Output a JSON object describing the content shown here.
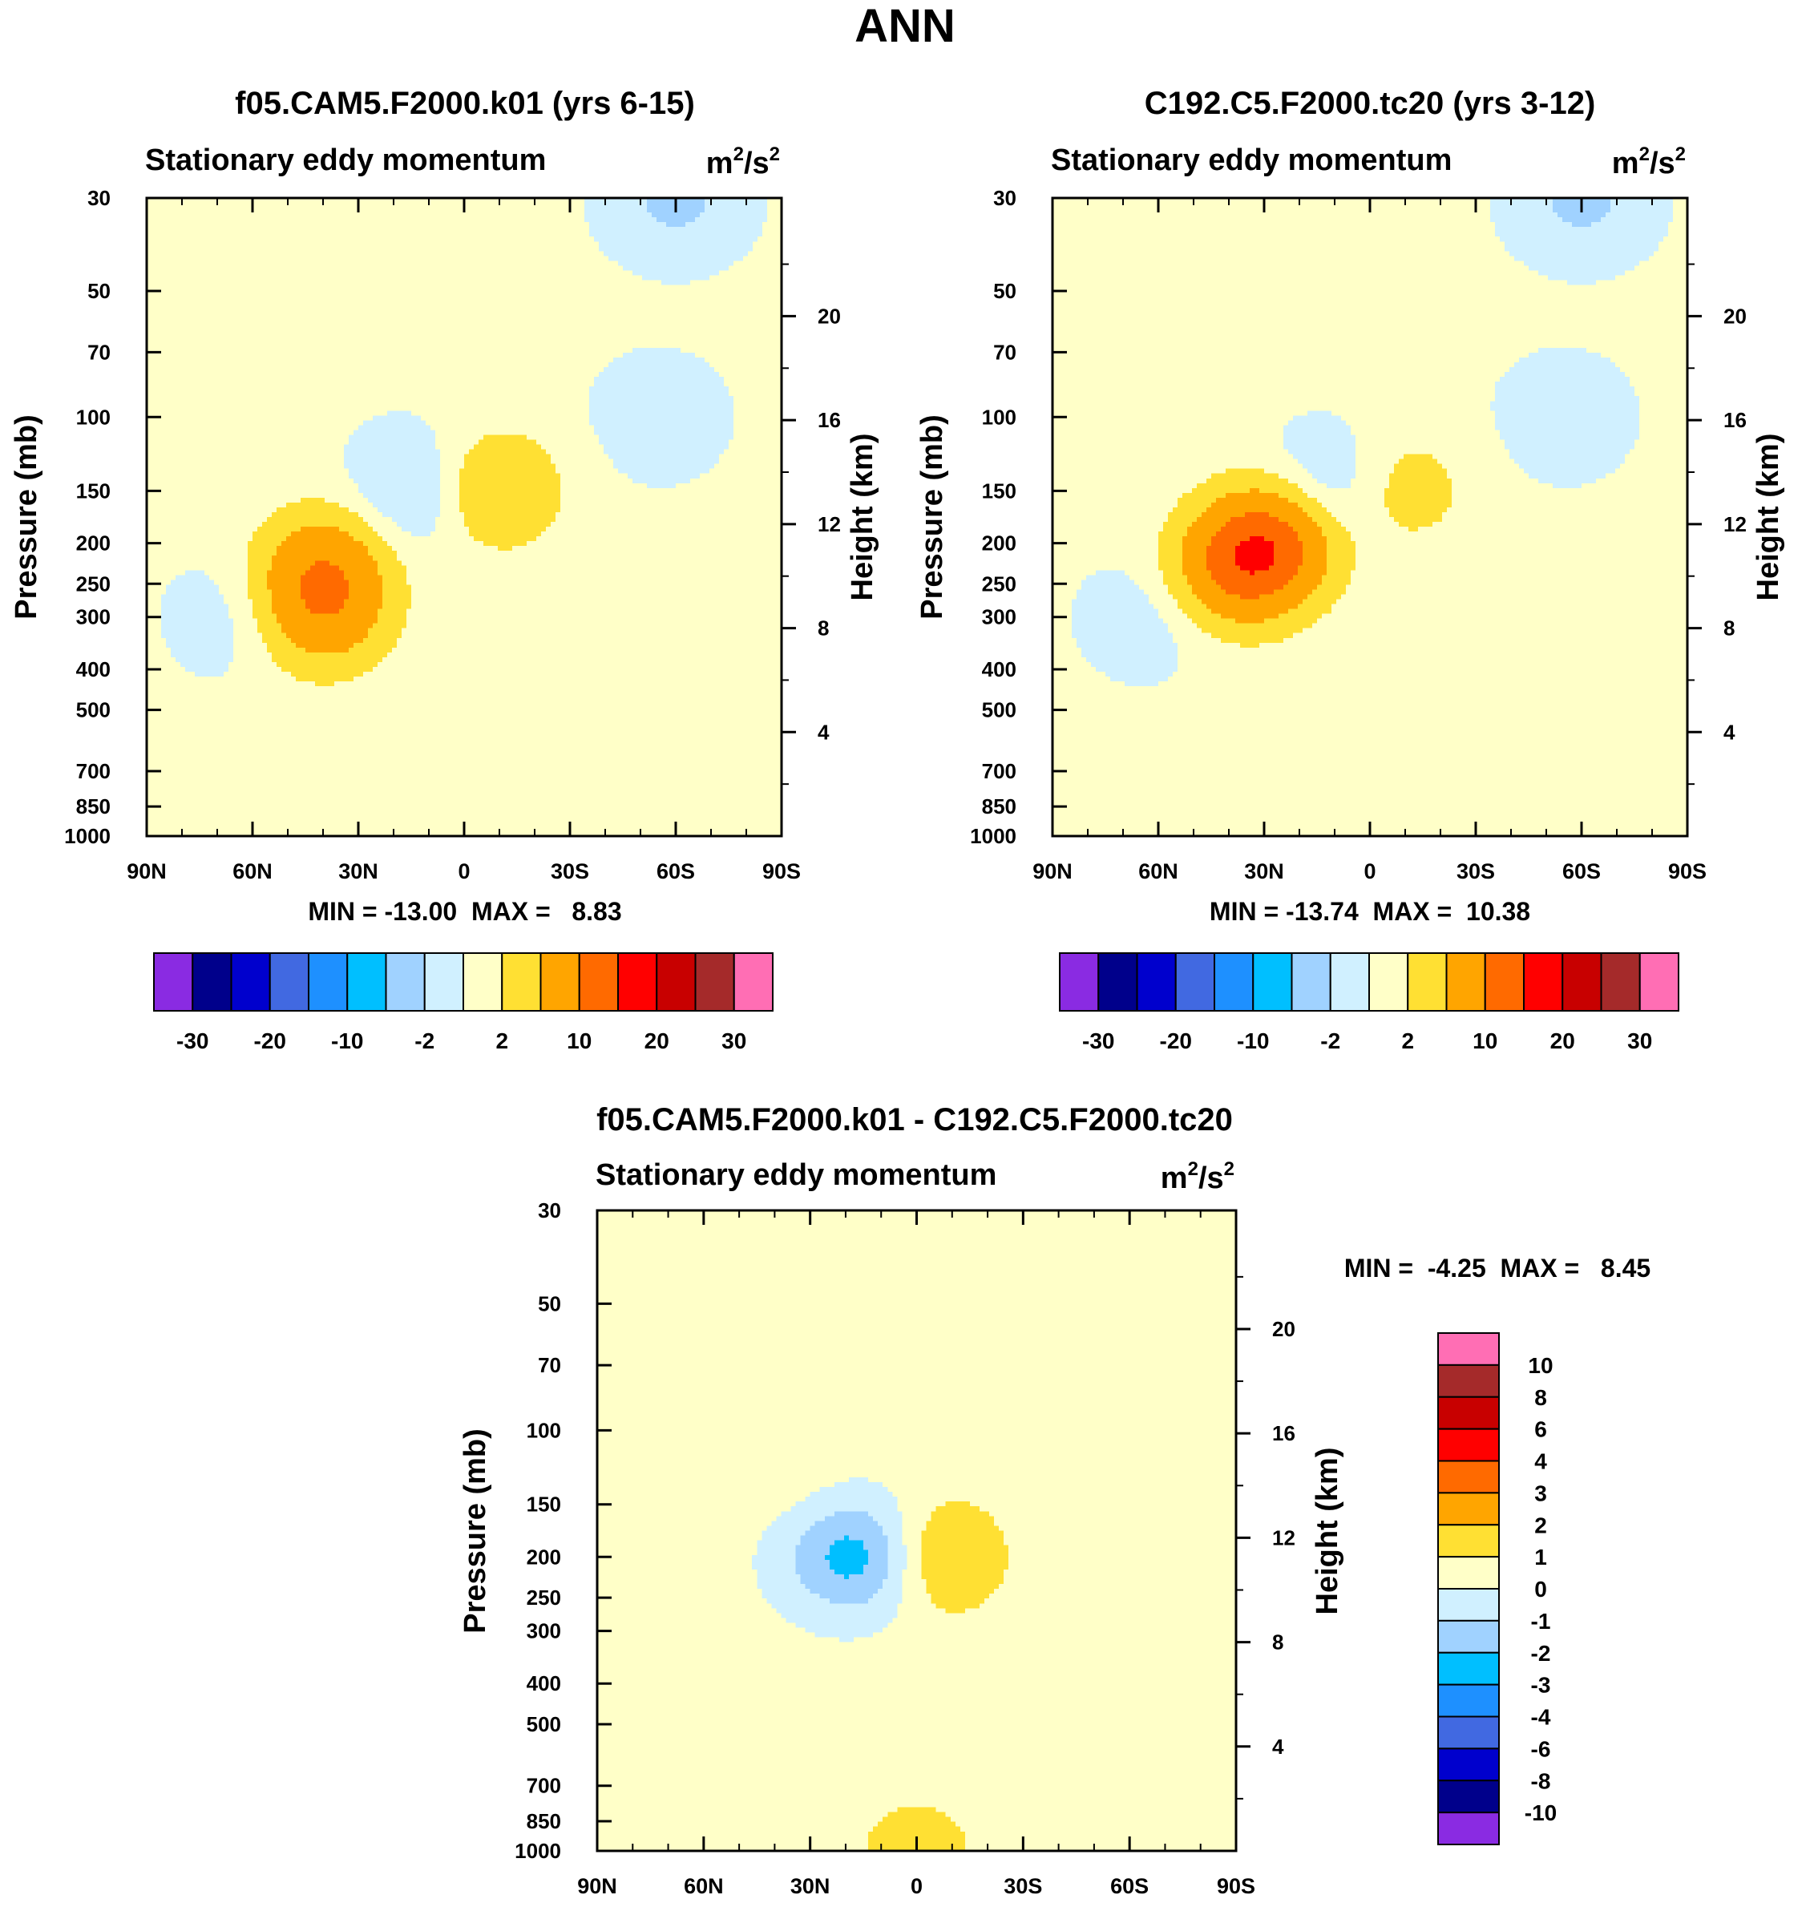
{
  "page_title": "ANN",
  "chart_data": [
    {
      "type": "heatmap",
      "panel_id": "panel-a",
      "title": "f05.CAM5.F2000.k01 (yrs 6-15)",
      "subtitle": "Stationary eddy momentum",
      "units_prefix": "m",
      "units_mid": "/s",
      "units_exp": "2",
      "ylabel": "Pressure (mb)",
      "y2label": "Height (km)",
      "x_ticks": [
        "90N",
        "60N",
        "30N",
        "0",
        "30S",
        "60S",
        "90S"
      ],
      "y_ticks": [
        "30",
        "50",
        "70",
        "100",
        "150",
        "200",
        "250",
        "300",
        "400",
        "500",
        "700",
        "850",
        "1000"
      ],
      "y2_ticks": [
        "20",
        "16",
        "12",
        "8",
        "4"
      ],
      "min_max_text": "MIN = -13.00  MAX =   8.83",
      "colorbar": {
        "orientation": "horizontal",
        "labels": [
          "-30",
          "-20",
          "-10",
          "-2",
          "2",
          "10",
          "20",
          "30"
        ]
      },
      "contour_levels": [
        -30,
        -25,
        -20,
        -15,
        -10,
        -5,
        -2,
        0,
        2,
        5,
        10,
        15,
        20,
        25,
        30
      ],
      "features": [
        {
          "lat": 40,
          "p": 230,
          "value": 7.5
        },
        {
          "lat": 40,
          "p": 300,
          "value": 6
        },
        {
          "lat": -9,
          "p": 150,
          "value": 5
        },
        {
          "lat": 13,
          "p": 150,
          "value": -3
        },
        {
          "lat": 65,
          "p": 300,
          "value": -1.5
        },
        {
          "lat": -55,
          "p": 100,
          "value": -1.5
        },
        {
          "lat": -60,
          "p": 30,
          "value": -3
        }
      ]
    },
    {
      "type": "heatmap",
      "panel_id": "panel-b",
      "title": "C192.C5.F2000.tc20 (yrs 3-12)",
      "subtitle": "Stationary eddy momentum",
      "units_prefix": "m",
      "units_mid": "/s",
      "units_exp": "2",
      "ylabel": "Pressure (mb)",
      "y2label": "Height (km)",
      "x_ticks": [
        "90N",
        "60N",
        "30N",
        "0",
        "30S",
        "60S",
        "90S"
      ],
      "y_ticks": [
        "30",
        "50",
        "70",
        "100",
        "150",
        "200",
        "250",
        "300",
        "400",
        "500",
        "700",
        "850",
        "1000"
      ],
      "y2_ticks": [
        "20",
        "16",
        "12",
        "8",
        "4"
      ],
      "min_max_text": "MIN = -13.74  MAX =  10.38",
      "colorbar": {
        "orientation": "horizontal",
        "labels": [
          "-30",
          "-20",
          "-10",
          "-2",
          "2",
          "10",
          "20",
          "30"
        ]
      },
      "contour_levels": [
        -30,
        -25,
        -20,
        -15,
        -10,
        -5,
        -2,
        0,
        2,
        5,
        10,
        15,
        20,
        25,
        30
      ],
      "features": [
        {
          "lat": 38,
          "p": 230,
          "value": 8
        },
        {
          "lat": 28,
          "p": 200,
          "value": 10.4
        },
        {
          "lat": -10,
          "p": 150,
          "value": 3
        },
        {
          "lat": 12,
          "p": 150,
          "value": -3
        },
        {
          "lat": 63,
          "p": 300,
          "value": -1.5
        },
        {
          "lat": -55,
          "p": 100,
          "value": -1.5
        },
        {
          "lat": -60,
          "p": 30,
          "value": -3
        }
      ]
    },
    {
      "type": "heatmap",
      "panel_id": "panel-c",
      "title": "f05.CAM5.F2000.k01 - C192.C5.F2000.tc20",
      "subtitle": "Stationary eddy momentum",
      "units_prefix": "m",
      "units_mid": "/s",
      "units_exp": "2",
      "ylabel": "Pressure (mb)",
      "y2label": "Height (km)",
      "x_ticks": [
        "90N",
        "60N",
        "30N",
        "0",
        "30S",
        "60S",
        "90S"
      ],
      "y_ticks": [
        "30",
        "50",
        "70",
        "100",
        "150",
        "200",
        "250",
        "300",
        "400",
        "500",
        "700",
        "850",
        "1000"
      ],
      "y2_ticks": [
        "20",
        "16",
        "12",
        "8",
        "4"
      ],
      "min_max_text": "MIN =  -4.25  MAX =   8.45",
      "colorbar": {
        "orientation": "vertical",
        "labels": [
          "10",
          "8",
          "6",
          "4",
          "3",
          "2",
          "1",
          "0",
          "-1",
          "-2",
          "-3",
          "-4",
          "-6",
          "-8",
          "-10"
        ]
      },
      "contour_levels": [
        -10,
        -8,
        -6,
        -4,
        -3,
        -2,
        -1,
        0,
        1,
        2,
        3,
        4,
        6,
        8,
        10
      ],
      "features": [
        {
          "lat": -6,
          "p": 200,
          "value": 2.2
        },
        {
          "lat": 12,
          "p": 200,
          "value": -2.2
        },
        {
          "lat": 25,
          "p": 200,
          "value": -1.2
        },
        {
          "lat": 40,
          "p": 120,
          "value": 0.5
        },
        {
          "lat": 0,
          "p": 1000,
          "value": 1.2
        }
      ]
    }
  ],
  "colors": {
    "ncl_14_class": [
      "#8a2be2",
      "#00008b",
      "#0000cd",
      "#4169e1",
      "#1e90ff",
      "#00bfff",
      "#a0d2ff",
      "#d0f0ff",
      "#ffffc8",
      "#ffe033",
      "#ffa500",
      "#ff6a00",
      "#ff0000",
      "#c80000",
      "#a52a2a",
      "#ff6eb4"
    ],
    "axis": "#000000",
    "background": "#ffffff"
  }
}
